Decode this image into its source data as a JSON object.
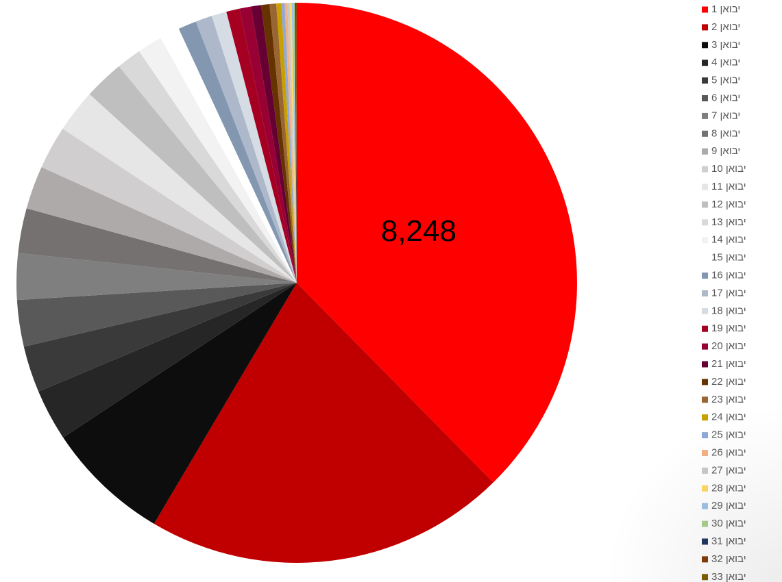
{
  "chart_data": {
    "type": "pie",
    "title": "",
    "start_angle_deg": 0,
    "direction": "clockwise",
    "legend_position": "right",
    "slices": [
      {
        "name": "יבואן 1",
        "value": 8248,
        "color": "#FF0000",
        "label": "8,248"
      },
      {
        "name": "יבואן 2",
        "value": 4574,
        "color": "#C00000"
      },
      {
        "name": "יבואן 3",
        "value": 1573,
        "color": "#0D0D0D"
      },
      {
        "name": "יבואן 4",
        "value": 651,
        "color": "#262626"
      },
      {
        "name": "יבואן 5",
        "value": 588,
        "color": "#3A3A3A"
      },
      {
        "name": "יבואן 6",
        "value": 588,
        "color": "#595959"
      },
      {
        "name": "יבואן 7",
        "value": 588,
        "color": "#7F7F7F"
      },
      {
        "name": "יבואן 8",
        "value": 567,
        "color": "#757171"
      },
      {
        "name": "יבואן 9",
        "value": 546,
        "color": "#AEAAAA"
      },
      {
        "name": "יבואן 10",
        "value": 546,
        "color": "#D0CECE"
      },
      {
        "name": "יבואן 11",
        "value": 546,
        "color": "#E7E6E6"
      },
      {
        "name": "יבואן 12",
        "value": 504,
        "color": "#BFBFBF"
      },
      {
        "name": "יבואן 13",
        "value": 315,
        "color": "#D9D9D9"
      },
      {
        "name": "יבואן 14",
        "value": 315,
        "color": "#F2F2F2"
      },
      {
        "name": "יבואן 15",
        "value": 252,
        "color": "#FFFFFF"
      },
      {
        "name": "יבואן 16",
        "value": 231,
        "color": "#8497B0"
      },
      {
        "name": "יבואן 17",
        "value": 210,
        "color": "#ADB9CA"
      },
      {
        "name": "יבואן 18",
        "value": 189,
        "color": "#D6DCE4"
      },
      {
        "name": "יבואן 19",
        "value": 168,
        "color": "#A50021"
      },
      {
        "name": "יבואן 20",
        "value": 147,
        "color": "#990033"
      },
      {
        "name": "יבואן 21",
        "value": 126,
        "color": "#660033"
      },
      {
        "name": "יבואן 22",
        "value": 105,
        "color": "#663300"
      },
      {
        "name": "יבואן 23",
        "value": 84,
        "color": "#996633"
      },
      {
        "name": "יבואן 24",
        "value": 63,
        "color": "#C9A000"
      },
      {
        "name": "יבואן 25",
        "value": 42,
        "color": "#8EA9DB"
      },
      {
        "name": "יבואן 26",
        "value": 34,
        "color": "#F4B183"
      },
      {
        "name": "יבואן 27",
        "value": 29,
        "color": "#C9C9C9"
      },
      {
        "name": "יבואן 28",
        "value": 25,
        "color": "#FFD966"
      },
      {
        "name": "יבואן 29",
        "value": 21,
        "color": "#9DC3E6"
      },
      {
        "name": "יבואן 30",
        "value": 17,
        "color": "#A9D18E"
      },
      {
        "name": "יבואן 31",
        "value": 13,
        "color": "#203864"
      },
      {
        "name": "יבואן 32",
        "value": 8,
        "color": "#843C0C"
      },
      {
        "name": "יבואן 33",
        "value": 4,
        "color": "#7F6000"
      }
    ]
  }
}
